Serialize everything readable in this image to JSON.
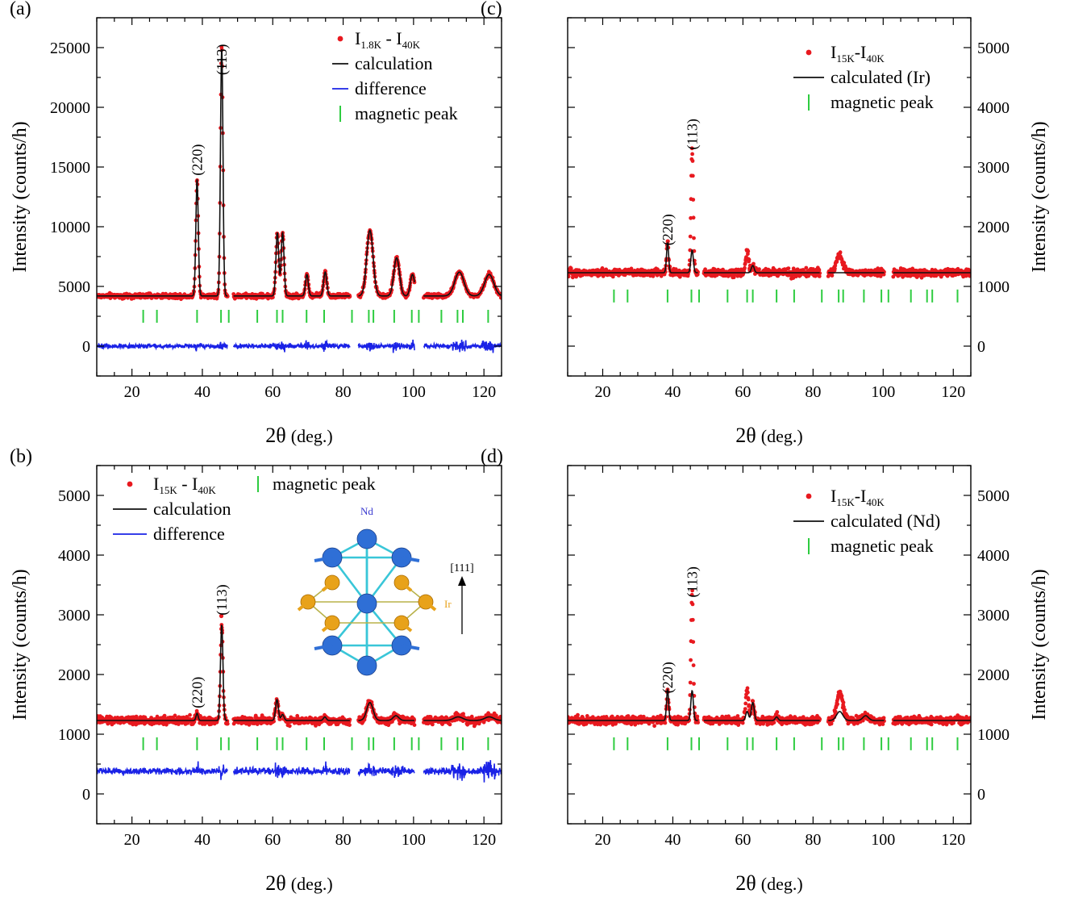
{
  "figure": {
    "panels": [
      {
        "label": "(a)",
        "xlabel_sym": "2θ",
        "xlabel_unit": "(deg.)",
        "ylabel": "Intensity (counts/h)",
        "legend": [
          {
            "kind": "dots",
            "main1": "I",
            "sub1": "1.8K",
            "mid": " - I",
            "sub2": "40K"
          },
          {
            "kind": "line",
            "text": "calculation"
          },
          {
            "kind": "diff",
            "text": "difference"
          },
          {
            "kind": "tick",
            "text": "magnetic peak"
          }
        ],
        "hkl": [
          "(220)",
          "(113)"
        ]
      },
      {
        "label": "(b)",
        "xlabel_sym": "2θ",
        "xlabel_unit": "(deg.)",
        "ylabel": "Intensity (counts/h)",
        "legend": [
          {
            "kind": "dots",
            "main1": "I",
            "sub1": "15K",
            "mid": " - I",
            "sub2": "40K"
          },
          {
            "kind": "line",
            "text": "calculation"
          },
          {
            "kind": "diff",
            "text": "difference"
          },
          {
            "kind": "tick",
            "text": "magnetic peak"
          }
        ],
        "hkl": [
          "(220)",
          "(113)"
        ],
        "inset": {
          "atom_top": "Nd",
          "atom_side": "Ir",
          "direction": "[111]"
        }
      },
      {
        "label": "(c)",
        "xlabel_sym": "2θ",
        "xlabel_unit": "(deg.)",
        "ylabel": "Intensity (counts/h)",
        "legend": [
          {
            "kind": "dots",
            "main1": "I",
            "sub1": "15K",
            "mid": "-I",
            "sub2": "40K"
          },
          {
            "kind": "line",
            "text": "calculated (Ir)"
          },
          {
            "kind": "tick",
            "text": "magnetic peak"
          }
        ],
        "hkl": [
          "(220)",
          "(113)"
        ]
      },
      {
        "label": "(d)",
        "xlabel_sym": "2θ",
        "xlabel_unit": "(deg.)",
        "ylabel": "Intensity (counts/h)",
        "legend": [
          {
            "kind": "dots",
            "main1": "I",
            "sub1": "15K",
            "mid": "-I",
            "sub2": "40K"
          },
          {
            "kind": "line",
            "text": "calculated (Nd)"
          },
          {
            "kind": "tick",
            "text": "magnetic peak"
          }
        ],
        "hkl": [
          "(220)",
          "(113)"
        ]
      }
    ]
  },
  "chart_data": [
    {
      "panel": "(a)",
      "type": "scatter",
      "xlim": [
        10,
        125
      ],
      "ylim": [
        -2500,
        27500
      ],
      "xticks": [
        20,
        40,
        60,
        80,
        100,
        120
      ],
      "yticks": [
        0,
        5000,
        10000,
        15000,
        20000,
        25000
      ],
      "yaxis_side": "left",
      "baseline": 4200,
      "diff_offset": 0,
      "diff_noise": 180,
      "obs_noise": 180,
      "peaks": [
        {
          "x": 38.5,
          "h": 9800,
          "w": 0.35
        },
        {
          "x": 45.5,
          "h": 20800,
          "w": 0.35
        },
        {
          "x": 61.3,
          "h": 5300,
          "w": 0.4
        },
        {
          "x": 62.8,
          "h": 5300,
          "w": 0.4
        },
        {
          "x": 69.7,
          "h": 1800,
          "w": 0.4
        },
        {
          "x": 74.9,
          "h": 2000,
          "w": 0.45
        },
        {
          "x": 87.6,
          "h": 5500,
          "w": 0.9
        },
        {
          "x": 95.2,
          "h": 3200,
          "w": 0.8
        },
        {
          "x": 99.7,
          "h": 1800,
          "w": 0.6
        },
        {
          "x": 113.0,
          "h": 2000,
          "w": 1.3
        },
        {
          "x": 121.5,
          "h": 1800,
          "w": 1.3
        }
      ],
      "excluded": [
        [
          47.2,
          48.8
        ],
        [
          82.0,
          84.3
        ],
        [
          100.3,
          102.8
        ]
      ],
      "magnetic_peaks": [
        23.2,
        27.1,
        38.5,
        45.3,
        47.5,
        55.6,
        61.2,
        62.8,
        69.6,
        74.6,
        82.5,
        87.3,
        88.6,
        94.5,
        99.5,
        101.5,
        107.9,
        112.5,
        114.0,
        121.2
      ],
      "tick_y": 2500,
      "series": [
        "I1.8K - I40K",
        "calculation",
        "difference",
        "magnetic peak"
      ]
    },
    {
      "panel": "(b)",
      "type": "scatter",
      "xlim": [
        10,
        125
      ],
      "ylim": [
        -500,
        5500
      ],
      "xticks": [
        20,
        40,
        60,
        80,
        100,
        120
      ],
      "yticks": [
        0,
        1000,
        2000,
        3000,
        4000,
        5000
      ],
      "yaxis_side": "left",
      "baseline": 1230,
      "diff_offset": 380,
      "diff_noise": 55,
      "obs_noise": 60,
      "peaks": [
        {
          "x": 38.5,
          "h": 120,
          "w": 0.3
        },
        {
          "x": 45.5,
          "h": 1600,
          "w": 0.35
        },
        {
          "x": 61.2,
          "h": 350,
          "w": 0.4
        },
        {
          "x": 62.8,
          "h": 100,
          "w": 0.4
        },
        {
          "x": 74.8,
          "h": 60,
          "w": 0.4
        },
        {
          "x": 87.6,
          "h": 300,
          "w": 0.9
        },
        {
          "x": 95.0,
          "h": 80,
          "w": 0.8
        },
        {
          "x": 112.7,
          "h": 60,
          "w": 1.3
        },
        {
          "x": 121.5,
          "h": 60,
          "w": 1.3
        }
      ],
      "obs_extra": [
        {
          "x": 45.4,
          "v": 2980
        },
        {
          "x": 45.6,
          "v": 2700
        }
      ],
      "excluded": [
        [
          47.2,
          48.8
        ],
        [
          82.0,
          84.3
        ],
        [
          100.3,
          102.8
        ]
      ],
      "magnetic_peaks": [
        23.2,
        27.1,
        38.5,
        45.3,
        47.5,
        55.6,
        61.2,
        62.8,
        69.6,
        74.6,
        82.5,
        87.3,
        88.6,
        94.5,
        99.5,
        101.5,
        107.9,
        112.5,
        114.0,
        121.2
      ],
      "tick_y": 840,
      "series": [
        "I15K - I40K",
        "calculation",
        "difference",
        "magnetic peak"
      ]
    },
    {
      "panel": "(c)",
      "type": "scatter",
      "xlim": [
        10,
        125
      ],
      "ylim": [
        -500,
        5500
      ],
      "xticks": [
        20,
        40,
        60,
        80,
        100,
        120
      ],
      "yticks": [
        0,
        1000,
        2000,
        3000,
        4000,
        5000
      ],
      "yaxis_side": "right",
      "baseline": 1230,
      "diff_offset": null,
      "obs_noise": 60,
      "peaks": [
        {
          "x": 38.5,
          "h": 500,
          "w": 0.3
        },
        {
          "x": 45.5,
          "h": 380,
          "w": 0.35
        },
        {
          "x": 62.8,
          "h": 120,
          "w": 0.4
        }
      ],
      "obs_peaks": [
        {
          "x": 45.5,
          "h": 1700,
          "w": 0.3
        },
        {
          "x": 61.2,
          "h": 380,
          "w": 0.4
        },
        {
          "x": 87.6,
          "h": 300,
          "w": 0.9
        }
      ],
      "excluded": [
        [
          47.2,
          48.8
        ],
        [
          82.0,
          84.3
        ],
        [
          100.3,
          102.8
        ]
      ],
      "magnetic_peaks": [
        23.2,
        27.1,
        38.5,
        45.3,
        47.5,
        55.6,
        61.2,
        62.8,
        69.6,
        74.6,
        82.5,
        87.3,
        88.6,
        94.5,
        99.5,
        101.5,
        107.9,
        112.5,
        114.0,
        121.2
      ],
      "tick_y": 840,
      "series": [
        "I15K-I40K",
        "calculated (Ir)",
        "magnetic peak"
      ]
    },
    {
      "panel": "(d)",
      "type": "scatter",
      "xlim": [
        10,
        125
      ],
      "ylim": [
        -500,
        5500
      ],
      "xticks": [
        20,
        40,
        60,
        80,
        100,
        120
      ],
      "yticks": [
        0,
        1000,
        2000,
        3000,
        4000,
        5000
      ],
      "yaxis_side": "right",
      "baseline": 1230,
      "diff_offset": null,
      "obs_noise": 60,
      "peaks": [
        {
          "x": 38.5,
          "h": 520,
          "w": 0.3
        },
        {
          "x": 45.5,
          "h": 500,
          "w": 0.35
        },
        {
          "x": 61.2,
          "h": 150,
          "w": 0.4
        },
        {
          "x": 62.8,
          "h": 300,
          "w": 0.4
        },
        {
          "x": 69.6,
          "h": 60,
          "w": 0.4
        },
        {
          "x": 87.6,
          "h": 150,
          "w": 0.9
        },
        {
          "x": 95.0,
          "h": 80,
          "w": 0.8
        }
      ],
      "obs_peaks": [
        {
          "x": 45.5,
          "h": 1700,
          "w": 0.3
        },
        {
          "x": 61.2,
          "h": 380,
          "w": 0.4
        },
        {
          "x": 87.6,
          "h": 300,
          "w": 0.9
        }
      ],
      "excluded": [
        [
          47.2,
          48.8
        ],
        [
          82.0,
          84.3
        ],
        [
          100.3,
          102.8
        ]
      ],
      "magnetic_peaks": [
        23.2,
        27.1,
        38.5,
        45.3,
        47.5,
        55.6,
        61.2,
        62.8,
        69.6,
        74.6,
        82.5,
        87.3,
        88.6,
        94.5,
        99.5,
        101.5,
        107.9,
        112.5,
        114.0,
        121.2
      ],
      "tick_y": 840,
      "series": [
        "I15K-I40K",
        "calculated (Nd)",
        "magnetic peak"
      ]
    }
  ]
}
